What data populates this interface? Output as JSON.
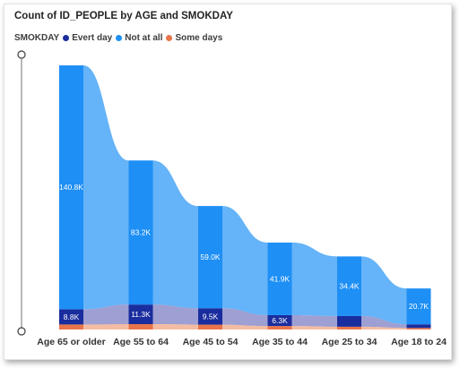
{
  "chart_data": {
    "type": "ribbon",
    "title": "Count of ID_PEOPLE by AGE and SMOKDAY",
    "legend_title": "SMOKDAY",
    "legend_placement": "top-left",
    "categories": [
      "Age 65 or older",
      "Age 55 to 64",
      "Age 45 to 54",
      "Age 35 to 44",
      "Age 25 to 34",
      "Age 18 to 24"
    ],
    "series": [
      {
        "name": "Evert day",
        "color": "#1a2d9e",
        "values": [
          8800,
          11300,
          9500,
          6300,
          6200,
          2100
        ],
        "labels": [
          "8.8K",
          "11.3K",
          "9.5K",
          "6.3K",
          "",
          ""
        ]
      },
      {
        "name": "Not at all",
        "color": "#1e8ff5",
        "values": [
          140800,
          83200,
          59000,
          41900,
          34400,
          20700
        ],
        "labels": [
          "140.8K",
          "83.2K",
          "59.0K",
          "41.9K",
          "34.4K",
          "20.7K"
        ]
      },
      {
        "name": "Some days",
        "color": "#e8744a",
        "values": [
          2900,
          3100,
          2800,
          2000,
          1600,
          900
        ],
        "labels": [
          "",
          "",
          "",
          "",
          "",
          ""
        ]
      }
    ],
    "stack_order_bottom_to_top": [
      "Some days",
      "Evert day",
      "Not at all"
    ],
    "ylim": [
      0,
      152000
    ]
  }
}
